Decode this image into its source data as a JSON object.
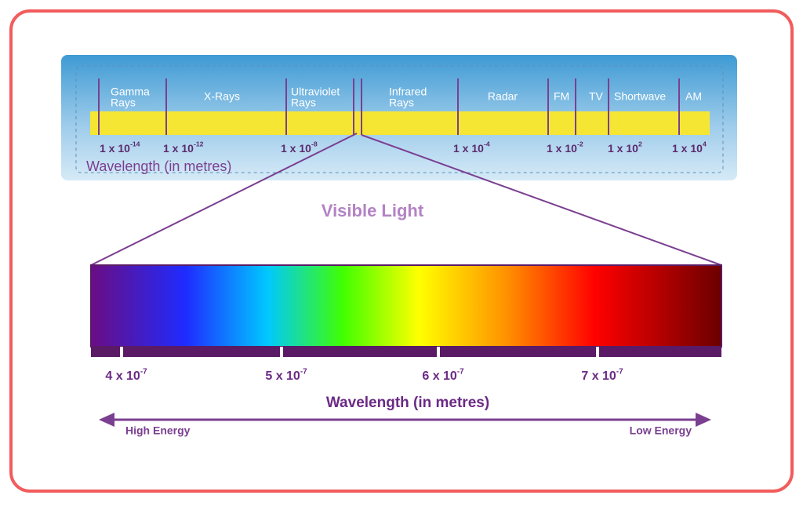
{
  "spectrum": {
    "bands": [
      [
        "Gamma",
        "Rays"
      ],
      [
        "X-Rays"
      ],
      [
        "Ultraviolet",
        "Rays"
      ],
      [
        "Infrared",
        "Rays"
      ],
      [
        "Radar"
      ],
      [
        "FM"
      ],
      [
        "TV"
      ],
      [
        "Shortwave"
      ],
      [
        "AM"
      ]
    ],
    "ticks": [
      {
        "base": "1 x 10",
        "exp": "-14"
      },
      {
        "base": "1 x 10",
        "exp": "-12"
      },
      {
        "base": "1 x 10",
        "exp": "-8"
      },
      {
        "base": "1 x 10",
        "exp": "-4"
      },
      {
        "base": "1 x 10",
        "exp": "-2"
      },
      {
        "base": "1 x 10",
        "exp": "2"
      },
      {
        "base": "1 x 10",
        "exp": "4"
      }
    ],
    "axis_label": "Wavelength (in metres)"
  },
  "visible": {
    "title": "Visible Light",
    "ticks": [
      {
        "base": "4 x 10",
        "exp": "-7"
      },
      {
        "base": "5 x 10",
        "exp": "-7"
      },
      {
        "base": "6 x 10",
        "exp": "-7"
      },
      {
        "base": "7 x 10",
        "exp": "-7"
      }
    ],
    "axis_label": "Wavelength (in metres)",
    "high": "High Energy",
    "low": "Low Energy"
  }
}
